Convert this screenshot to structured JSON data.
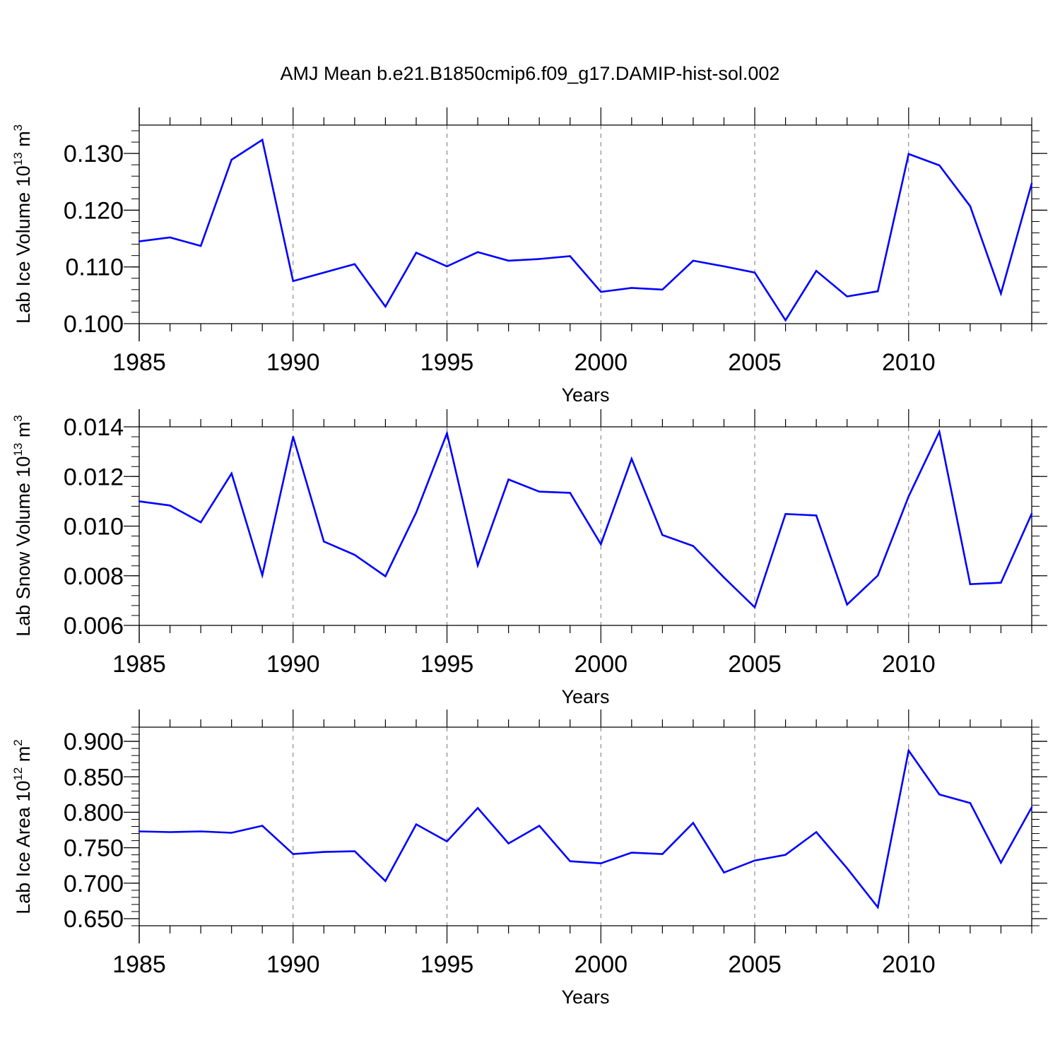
{
  "title": "AMJ Mean b.e21.B1850cmip6.f09_g17.DAMIP-hist-sol.002",
  "colors": {
    "line": "#0000ff",
    "axis": "#000000",
    "grid": "#777777",
    "background": "#ffffff"
  },
  "chart_data": [
    {
      "type": "line",
      "xlabel": "Years",
      "ylabel": {
        "text": "Lab Ice Volume 10",
        "exp": "13",
        "unit": " m",
        "unit_exp": "3"
      },
      "xlim": [
        1985,
        2014
      ],
      "ylim": [
        0.1,
        0.135
      ],
      "x_ticks": [
        1985,
        1990,
        1995,
        2000,
        2005,
        2010
      ],
      "x_tick_labels": [
        "1985",
        "1990",
        "1995",
        "2000",
        "2005",
        "2010"
      ],
      "y_ticks": [
        0.1,
        0.11,
        0.12,
        0.13
      ],
      "y_tick_labels": [
        "0.100",
        "0.110",
        "0.120",
        "0.130"
      ],
      "y_minor_step": 0.002,
      "grid": "vertical dashed at major x ticks",
      "series": [
        {
          "name": "Lab Ice Volume",
          "x": [
            1985,
            1986,
            1987,
            1988,
            1989,
            1990,
            1991,
            1992,
            1993,
            1994,
            1995,
            1996,
            1997,
            1998,
            1999,
            2000,
            2001,
            2002,
            2003,
            2004,
            2005,
            2006,
            2007,
            2008,
            2009,
            2010,
            2011,
            2012,
            2013,
            2014
          ],
          "values": [
            0.1145,
            0.1152,
            0.1137,
            0.1289,
            0.1324,
            0.1075,
            0.109,
            0.1105,
            0.103,
            0.1125,
            0.1101,
            0.1126,
            0.1111,
            0.1114,
            0.1119,
            0.1056,
            0.1063,
            0.106,
            0.1111,
            0.1101,
            0.109,
            0.1006,
            0.1093,
            0.1048,
            0.1057,
            0.1299,
            0.1279,
            0.1207,
            0.1053,
            0.1247
          ]
        }
      ]
    },
    {
      "type": "line",
      "xlabel": "Years",
      "ylabel": {
        "text": "Lab Snow Volume 10",
        "exp": "13",
        "unit": " m",
        "unit_exp": "3"
      },
      "xlim": [
        1985,
        2014
      ],
      "ylim": [
        0.006,
        0.014
      ],
      "x_ticks": [
        1985,
        1990,
        1995,
        2000,
        2005,
        2010
      ],
      "x_tick_labels": [
        "1985",
        "1990",
        "1995",
        "2000",
        "2005",
        "2010"
      ],
      "y_ticks": [
        0.006,
        0.008,
        0.01,
        0.012,
        0.014
      ],
      "y_tick_labels": [
        "0.006",
        "0.008",
        "0.010",
        "0.012",
        "0.014"
      ],
      "y_minor_step": 0.0004,
      "grid": "vertical dashed at major x ticks",
      "series": [
        {
          "name": "Lab Snow Volume",
          "x": [
            1985,
            1986,
            1987,
            1988,
            1989,
            1990,
            1991,
            1992,
            1993,
            1994,
            1995,
            1996,
            1997,
            1998,
            1999,
            2000,
            2001,
            2002,
            2003,
            2004,
            2005,
            2006,
            2007,
            2008,
            2009,
            2010,
            2011,
            2012,
            2013,
            2014
          ],
          "values": [
            0.011,
            0.01083,
            0.01015,
            0.01212,
            0.00802,
            0.0136,
            0.00938,
            0.00884,
            0.00798,
            0.01055,
            0.01374,
            0.00842,
            0.01188,
            0.01139,
            0.01134,
            0.00927,
            0.01271,
            0.00964,
            0.0092,
            0.00793,
            0.00673,
            0.01049,
            0.01043,
            0.00684,
            0.00801,
            0.0112,
            0.0138,
            0.00766,
            0.00772,
            0.0105
          ]
        }
      ]
    },
    {
      "type": "line",
      "xlabel": "Years",
      "ylabel": {
        "text": "Lab Ice Area 10",
        "exp": "12",
        "unit": " m",
        "unit_exp": "2"
      },
      "xlim": [
        1985,
        2014
      ],
      "ylim": [
        0.64,
        0.92
      ],
      "x_ticks": [
        1985,
        1990,
        1995,
        2000,
        2005,
        2010
      ],
      "x_tick_labels": [
        "1985",
        "1990",
        "1995",
        "2000",
        "2005",
        "2010"
      ],
      "y_ticks": [
        0.65,
        0.7,
        0.75,
        0.8,
        0.85,
        0.9
      ],
      "y_tick_labels": [
        "0.650",
        "0.700",
        "0.750",
        "0.800",
        "0.850",
        "0.900"
      ],
      "y_minor_step": 0.01,
      "grid": "vertical dashed at major x ticks",
      "series": [
        {
          "name": "Lab Ice Area",
          "x": [
            1985,
            1986,
            1987,
            1988,
            1989,
            1990,
            1991,
            1992,
            1993,
            1994,
            1995,
            1996,
            1997,
            1998,
            1999,
            2000,
            2001,
            2002,
            2003,
            2004,
            2005,
            2006,
            2007,
            2008,
            2009,
            2010,
            2011,
            2012,
            2013,
            2014
          ],
          "values": [
            0.773,
            0.772,
            0.773,
            0.771,
            0.781,
            0.741,
            0.744,
            0.745,
            0.703,
            0.783,
            0.759,
            0.806,
            0.756,
            0.781,
            0.731,
            0.728,
            0.743,
            0.741,
            0.785,
            0.715,
            0.732,
            0.74,
            0.772,
            0.721,
            0.666,
            0.887,
            0.825,
            0.813,
            0.729,
            0.807
          ]
        }
      ]
    }
  ]
}
